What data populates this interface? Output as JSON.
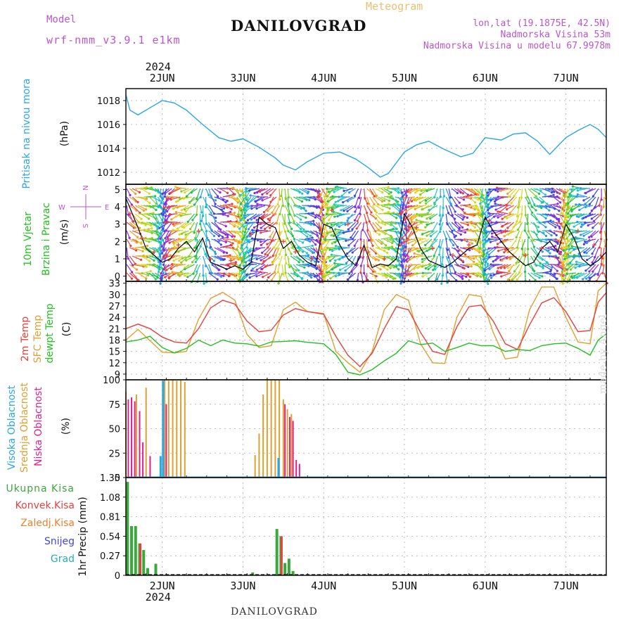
{
  "header": {
    "meteogram": "Meteogram",
    "model_label": "Model",
    "model_name": "wrf-nmm_v3.9.1 e1km",
    "title": "DANILOVGRAD",
    "lonlat": "lon,lat (19.1875E, 42.5N)",
    "elevation": "Nadmorska Visina 53m",
    "model_elevation": "Nadmorska Visina u modelu 67.9978m",
    "footer": "DANILOVGRAD",
    "watermark": "made by Angel"
  },
  "time_axis": {
    "year": "2024",
    "days": [
      "2JUN",
      "3JUN",
      "4JUN",
      "5JUN",
      "6JUN",
      "7JUN"
    ],
    "day_positions": [
      1,
      2,
      3,
      4,
      5,
      6
    ],
    "range": [
      0.55,
      6.5
    ]
  },
  "colors": {
    "pressure": "#2aa6e6",
    "temp2m": "#e8403a",
    "sfc_temp": "#e0a030",
    "dewpoint": "#22c022",
    "high_cloud": "#2aa6e6",
    "mid_cloud": "#e0a030",
    "low_cloud": "#e0208a",
    "precip_total": "#3aa83a",
    "precip_conv": "#e8403a",
    "precip_strat": "#f08030",
    "snow": "#4444dd",
    "hail": "#22b0b0",
    "wind_speed": "#000000",
    "wind_gust": "#e8403a",
    "compass": "#bb55cc"
  },
  "panel_labels": {
    "pressure": {
      "title": "Pritisak na nivou mora",
      "unit": "(hPa)"
    },
    "wind": {
      "title1": "10m Vjetar",
      "title2": "Brzina i Pravac",
      "unit": "(m/s)",
      "compass_n": "N",
      "compass_s": "S",
      "compass_w": "W",
      "compass_e": "E"
    },
    "temp": {
      "t1": "2m Temp",
      "t2": "SFC Temp",
      "t3": "dewpt Temp",
      "unit": "(C)"
    },
    "cloud": {
      "c1": "Visoka Oblacnost",
      "c2": "Srednja Oblacnost",
      "c3": "Niska Oblacnost",
      "unit": "(%)"
    },
    "precip": {
      "legend": [
        "Ukupna Kisa",
        "Konvek.Kisa",
        "Zaledj.Kisa",
        "Snijeg",
        "Grad"
      ],
      "unit": "1hr Precip (mm)"
    }
  },
  "chart_data": [
    {
      "type": "line",
      "title": "",
      "ylabel": "(hPa)",
      "ylim": [
        1011,
        1019
      ],
      "yticks": [
        "1012",
        "1014",
        "1016",
        "1018"
      ],
      "grid": true,
      "series": [
        {
          "name": "Pritisak na nivou mora",
          "x": [
            0.55,
            0.6,
            0.7,
            0.85,
            1.0,
            1.15,
            1.3,
            1.5,
            1.7,
            1.85,
            2.0,
            2.2,
            2.4,
            2.5,
            2.65,
            2.8,
            3.0,
            3.2,
            3.4,
            3.55,
            3.7,
            3.8,
            3.9,
            4.0,
            4.15,
            4.3,
            4.5,
            4.7,
            4.85,
            5.0,
            5.2,
            5.35,
            5.5,
            5.65,
            5.8,
            6.0,
            6.15,
            6.3,
            6.4,
            6.5
          ],
          "y": [
            1018.5,
            1017.2,
            1016.8,
            1017.4,
            1018.0,
            1017.8,
            1017.2,
            1016.0,
            1014.9,
            1014.6,
            1014.8,
            1014.1,
            1013.2,
            1012.6,
            1012.2,
            1012.9,
            1013.6,
            1013.7,
            1013.1,
            1012.4,
            1011.6,
            1011.9,
            1012.8,
            1013.7,
            1014.3,
            1014.6,
            1013.9,
            1013.3,
            1013.6,
            1014.9,
            1014.7,
            1015.2,
            1015.3,
            1014.6,
            1013.5,
            1014.9,
            1015.5,
            1016.0,
            1015.6,
            1014.9
          ]
        }
      ]
    },
    {
      "type": "line",
      "title": "",
      "ylabel": "(m/s)",
      "ylim": [
        -0.3,
        5.3
      ],
      "yticks": [
        "0",
        "1",
        "2",
        "3",
        "4",
        "5"
      ],
      "grid": true,
      "series": [
        {
          "name": "wind speed",
          "x": [
            0.55,
            0.7,
            0.8,
            0.9,
            1.0,
            1.1,
            1.2,
            1.3,
            1.4,
            1.5,
            1.6,
            1.7,
            1.8,
            1.9,
            2.0,
            2.1,
            2.2,
            2.3,
            2.4,
            2.5,
            2.6,
            2.7,
            2.8,
            2.9,
            3.0,
            3.1,
            3.2,
            3.3,
            3.4,
            3.5,
            3.6,
            3.7,
            3.8,
            3.9,
            4.0,
            4.1,
            4.2,
            4.3,
            4.4,
            4.5,
            4.6,
            4.7,
            4.8,
            4.9,
            5.0,
            5.1,
            5.2,
            5.3,
            5.4,
            5.5,
            5.6,
            5.7,
            5.8,
            5.9,
            6.0,
            6.1,
            6.2,
            6.3,
            6.4,
            6.5
          ],
          "y": [
            4.5,
            2.8,
            1.6,
            1.2,
            0.8,
            1.0,
            1.6,
            2.0,
            1.4,
            2.2,
            0.8,
            0.6,
            0.4,
            0.6,
            0.4,
            0.8,
            3.4,
            3.0,
            2.8,
            1.6,
            2.0,
            1.2,
            0.8,
            0.6,
            3.0,
            2.8,
            1.8,
            1.0,
            0.6,
            1.8,
            0.5,
            0.7,
            0.6,
            1.0,
            3.6,
            2.8,
            1.6,
            0.9,
            0.7,
            0.5,
            0.8,
            1.2,
            1.6,
            1.8,
            3.4,
            2.6,
            2.0,
            1.4,
            1.0,
            0.6,
            0.8,
            1.6,
            2.0,
            1.4,
            3.0,
            2.2,
            1.0,
            0.6,
            0.9,
            1.4
          ]
        },
        {
          "name": "gust",
          "x": [
            0.6,
            0.75,
            0.9,
            1.05,
            1.2,
            1.45,
            1.6,
            1.85,
            2.1,
            2.25,
            2.5,
            2.65,
            2.85,
            3.1,
            3.3,
            3.55,
            3.75,
            3.95,
            4.15,
            4.35,
            4.6,
            4.8,
            5.05,
            5.25,
            5.5,
            5.7,
            5.95,
            6.15,
            6.35
          ],
          "y": [
            3.6,
            2.2,
            1.4,
            1.2,
            1.8,
            2.6,
            1.0,
            0.9,
            2.4,
            3.4,
            2.0,
            1.4,
            1.0,
            3.8,
            3.0,
            1.4,
            1.0,
            3.6,
            2.8,
            1.6,
            1.2,
            1.8,
            3.2,
            2.6,
            1.2,
            1.6,
            2.2,
            2.6,
            1.8
          ]
        }
      ]
    },
    {
      "type": "line",
      "title": "",
      "ylabel": "(C)",
      "ylim": [
        7.5,
        33.5
      ],
      "yticks": [
        "9",
        "12",
        "15",
        "18",
        "21",
        "24",
        "27",
        "30",
        "33"
      ],
      "grid": true,
      "series": [
        {
          "name": "2m Temp",
          "x": [
            0.55,
            0.7,
            0.85,
            1.0,
            1.15,
            1.3,
            1.45,
            1.6,
            1.75,
            1.9,
            2.05,
            2.2,
            2.35,
            2.5,
            2.65,
            2.8,
            3.0,
            3.15,
            3.3,
            3.45,
            3.6,
            3.75,
            3.9,
            4.05,
            4.2,
            4.35,
            4.5,
            4.65,
            4.8,
            4.95,
            5.1,
            5.25,
            5.4,
            5.55,
            5.7,
            5.85,
            6.0,
            6.15,
            6.3,
            6.4,
            6.5
          ],
          "y": [
            21.0,
            22.2,
            21.0,
            18.8,
            17.5,
            17.2,
            21.0,
            26.5,
            28.5,
            27.5,
            23.0,
            20.2,
            20.6,
            24.6,
            26.3,
            25.5,
            24.8,
            19.0,
            14.0,
            11.0,
            14.5,
            21.0,
            26.8,
            26.0,
            20.0,
            15.0,
            14.2,
            21.5,
            26.8,
            27.2,
            23.0,
            17.0,
            15.5,
            22.0,
            27.8,
            29.2,
            25.5,
            20.2,
            20.5,
            28.0,
            30.5
          ]
        },
        {
          "name": "SFC Temp",
          "x": [
            0.55,
            0.7,
            0.85,
            1.0,
            1.15,
            1.3,
            1.45,
            1.6,
            1.75,
            1.9,
            2.05,
            2.2,
            2.35,
            2.5,
            2.65,
            2.8,
            3.0,
            3.15,
            3.3,
            3.45,
            3.6,
            3.75,
            3.9,
            4.05,
            4.2,
            4.35,
            4.5,
            4.65,
            4.8,
            4.95,
            5.1,
            5.25,
            5.4,
            5.55,
            5.7,
            5.85,
            6.0,
            6.15,
            6.3,
            6.4,
            6.5
          ],
          "y": [
            18.0,
            20.8,
            17.8,
            14.8,
            14.6,
            15.0,
            23.5,
            29.0,
            30.6,
            28.5,
            19.5,
            16.0,
            16.5,
            26.0,
            28.0,
            25.5,
            25.0,
            15.0,
            12.0,
            9.5,
            15.0,
            26.0,
            30.0,
            28.5,
            17.0,
            12.0,
            11.8,
            24.0,
            30.0,
            29.5,
            20.0,
            13.0,
            13.5,
            26.0,
            32.0,
            32.0,
            24.0,
            17.5,
            17.0,
            31.0,
            33.0
          ]
        },
        {
          "name": "dewpt Temp",
          "x": [
            0.55,
            0.7,
            0.85,
            1.0,
            1.15,
            1.3,
            1.45,
            1.6,
            1.75,
            1.9,
            2.05,
            2.2,
            2.35,
            2.5,
            2.65,
            2.8,
            3.0,
            3.15,
            3.3,
            3.45,
            3.6,
            3.75,
            3.9,
            4.05,
            4.2,
            4.35,
            4.5,
            4.65,
            4.8,
            4.95,
            5.1,
            5.25,
            5.4,
            5.55,
            5.7,
            5.85,
            6.0,
            6.15,
            6.3,
            6.4,
            6.5
          ],
          "y": [
            17.5,
            18.0,
            19.0,
            16.0,
            14.6,
            15.8,
            18.0,
            16.5,
            18.0,
            17.2,
            17.0,
            16.4,
            17.5,
            17.6,
            17.8,
            17.4,
            17.0,
            14.2,
            9.5,
            8.8,
            10.2,
            12.5,
            14.5,
            17.8,
            16.8,
            17.2,
            15.0,
            16.0,
            17.2,
            16.5,
            16.5,
            15.0,
            15.5,
            15.2,
            16.5,
            17.0,
            17.2,
            15.8,
            14.0,
            18.0,
            19.6
          ]
        }
      ]
    },
    {
      "type": "bar",
      "title": "",
      "ylabel": "(%)",
      "ylim": [
        0,
        100
      ],
      "yticks": [
        "0",
        "25",
        "50",
        "75",
        "100"
      ],
      "grid": true,
      "series": [
        {
          "name": "Srednja Oblacnost",
          "x": [
            0.55,
            0.68,
            0.8,
            1.03,
            1.08,
            1.13,
            1.18,
            1.23,
            1.28,
            2.15,
            2.2,
            2.25,
            2.3,
            2.35,
            2.4,
            2.45,
            2.5,
            2.55,
            2.6
          ],
          "values": [
            88,
            85,
            92,
            100,
            99,
            100,
            99,
            100,
            98,
            23,
            45,
            85,
            100,
            100,
            100,
            100,
            80,
            70,
            65
          ]
        },
        {
          "name": "Niska Oblacnost",
          "x": [
            0.58,
            0.62,
            0.66,
            0.72,
            0.76,
            0.85,
            1.05,
            2.52,
            2.58,
            2.62,
            2.66,
            2.7
          ],
          "values": [
            80,
            82,
            78,
            68,
            36,
            22,
            75,
            75,
            62,
            58,
            18,
            14
          ]
        },
        {
          "name": "Visoka Oblacnost",
          "x": [
            0.98,
            1.01,
            2.44
          ],
          "values": [
            22,
            99,
            20
          ]
        }
      ]
    },
    {
      "type": "bar",
      "title": "",
      "ylabel": "1hr Precip (mm)",
      "ylim": [
        0,
        1.35
      ],
      "yticks": [
        "0",
        "0.27",
        "0.54",
        "0.81",
        "1.08",
        "1.35"
      ],
      "grid": true,
      "series": [
        {
          "name": "Ukupna Kisa",
          "x": [
            0.57,
            0.62,
            0.67,
            0.72,
            0.77,
            0.82,
            0.92,
            2.12,
            2.42,
            2.47,
            2.52,
            2.57,
            2.62
          ],
          "values": [
            1.29,
            0.68,
            0.68,
            0.44,
            0.35,
            0.1,
            0.16,
            0.04,
            0.64,
            0.54,
            0.17,
            0.23,
            0.06
          ]
        },
        {
          "name": "Konvek.Kisa",
          "x": [
            0.72,
            2.47
          ],
          "values": [
            0.44,
            0.54
          ]
        }
      ]
    }
  ]
}
